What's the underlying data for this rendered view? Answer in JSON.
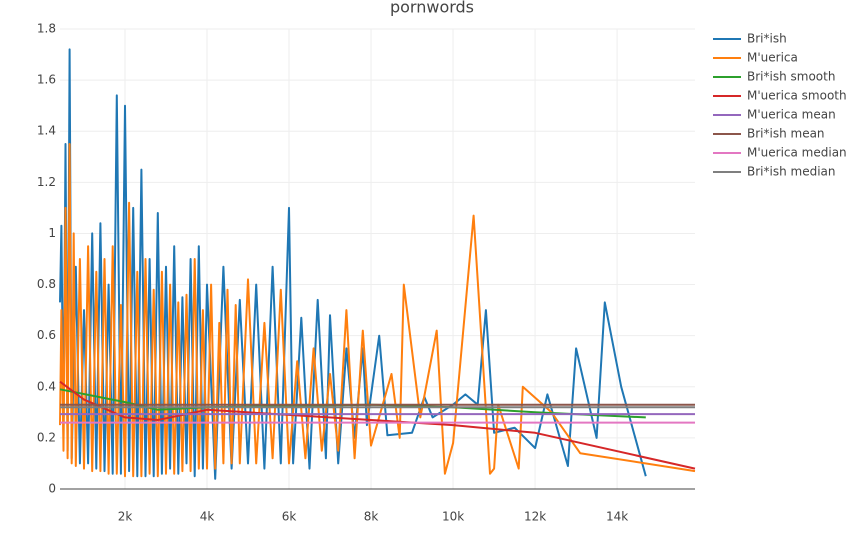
{
  "chart_data": {
    "type": "line",
    "title": "pornwords",
    "xlim": [
      415,
      15900
    ],
    "ylim": [
      0,
      1.8
    ],
    "xticks": [
      {
        "value": 2000,
        "label": "2k"
      },
      {
        "value": 4000,
        "label": "4k"
      },
      {
        "value": 6000,
        "label": "6k"
      },
      {
        "value": 8000,
        "label": "8k"
      },
      {
        "value": 10000,
        "label": "10k"
      },
      {
        "value": 12000,
        "label": "12k"
      },
      {
        "value": 14000,
        "label": "14k"
      }
    ],
    "yticks": [
      0,
      0.2,
      0.4,
      0.6,
      0.8,
      1,
      1.2,
      1.4,
      1.6,
      1.8
    ],
    "grid": true,
    "legend": "right",
    "series": [
      {
        "name": "Bri*ish",
        "color": "#1f77b4",
        "x": [
          415,
          450,
          500,
          550,
          600,
          650,
          700,
          800,
          900,
          1000,
          1100,
          1200,
          1300,
          1400,
          1500,
          1600,
          1700,
          1800,
          1900,
          2000,
          2100,
          2200,
          2300,
          2400,
          2500,
          2600,
          2700,
          2800,
          2900,
          3000,
          3100,
          3200,
          3300,
          3400,
          3500,
          3600,
          3700,
          3800,
          3900,
          4000,
          4200,
          4400,
          4600,
          4800,
          5000,
          5200,
          5400,
          5600,
          5800,
          6000,
          6100,
          6300,
          6500,
          6700,
          6900,
          7000,
          7200,
          7400,
          7600,
          7800,
          7900,
          8200,
          8400,
          9000,
          9300,
          9500,
          10000,
          10300,
          10600,
          10800,
          11000,
          11500,
          12000,
          12300,
          12800,
          13000,
          13500,
          13700,
          14100,
          14700
        ],
        "values": [
          0.73,
          1.03,
          0.2,
          1.35,
          0.15,
          1.72,
          0.12,
          0.87,
          0.1,
          0.7,
          0.1,
          1.0,
          0.08,
          1.04,
          0.07,
          0.8,
          0.06,
          1.54,
          0.06,
          1.5,
          0.07,
          1.1,
          0.05,
          1.25,
          0.05,
          0.9,
          0.05,
          1.08,
          0.06,
          0.87,
          0.08,
          0.95,
          0.06,
          0.75,
          0.1,
          0.9,
          0.05,
          0.95,
          0.08,
          0.8,
          0.04,
          0.87,
          0.08,
          0.74,
          0.1,
          0.8,
          0.08,
          0.87,
          0.1,
          1.1,
          0.1,
          0.67,
          0.08,
          0.74,
          0.12,
          0.68,
          0.1,
          0.55,
          0.2,
          0.55,
          0.25,
          0.6,
          0.21,
          0.22,
          0.36,
          0.28,
          0.33,
          0.37,
          0.33,
          0.7,
          0.22,
          0.24,
          0.16,
          0.37,
          0.09,
          0.55,
          0.2,
          0.73,
          0.4,
          0.05
        ]
      },
      {
        "name": "M'uerica",
        "color": "#ff7f0e",
        "x": [
          415,
          450,
          500,
          550,
          600,
          650,
          700,
          750,
          800,
          900,
          1000,
          1100,
          1200,
          1300,
          1400,
          1500,
          1600,
          1700,
          1800,
          1900,
          2000,
          2100,
          2200,
          2300,
          2400,
          2500,
          2600,
          2700,
          2800,
          2900,
          3000,
          3100,
          3200,
          3300,
          3400,
          3500,
          3600,
          3700,
          3800,
          3900,
          4000,
          4100,
          4200,
          4300,
          4400,
          4500,
          4600,
          4700,
          4800,
          5000,
          5200,
          5400,
          5600,
          5800,
          6000,
          6200,
          6400,
          6600,
          6800,
          7000,
          7200,
          7400,
          7600,
          7800,
          8000,
          8500,
          8700,
          8800,
          9200,
          9600,
          9800,
          10000,
          10500,
          10900,
          11000,
          11100,
          11600,
          11700,
          12400,
          13100,
          15900
        ],
        "values": [
          0.25,
          0.7,
          0.15,
          1.1,
          0.12,
          1.35,
          0.1,
          1.0,
          0.09,
          0.9,
          0.08,
          0.95,
          0.07,
          0.85,
          0.07,
          0.9,
          0.06,
          0.95,
          0.06,
          0.72,
          0.05,
          1.12,
          0.05,
          0.85,
          0.05,
          0.9,
          0.06,
          0.78,
          0.05,
          0.85,
          0.06,
          0.8,
          0.06,
          0.73,
          0.07,
          0.76,
          0.07,
          0.9,
          0.08,
          0.7,
          0.08,
          0.8,
          0.08,
          0.65,
          0.1,
          0.78,
          0.1,
          0.72,
          0.1,
          0.82,
          0.1,
          0.65,
          0.12,
          0.78,
          0.1,
          0.5,
          0.12,
          0.55,
          0.15,
          0.45,
          0.15,
          0.7,
          0.12,
          0.62,
          0.17,
          0.45,
          0.2,
          0.8,
          0.28,
          0.62,
          0.06,
          0.18,
          1.07,
          0.06,
          0.08,
          0.33,
          0.08,
          0.4,
          0.3,
          0.14,
          0.07
        ]
      },
      {
        "name": "Bri*ish smooth",
        "color": "#2ca02c",
        "x": [
          415,
          2000,
          2800,
          4000,
          8000,
          10000,
          12000,
          14700
        ],
        "values": [
          0.39,
          0.34,
          0.31,
          0.32,
          0.33,
          0.32,
          0.3,
          0.28
        ]
      },
      {
        "name": "M'uerica smooth",
        "color": "#d62728",
        "x": [
          415,
          1000,
          2000,
          2800,
          4000,
          6000,
          8000,
          10000,
          12000,
          15900
        ],
        "values": [
          0.42,
          0.35,
          0.28,
          0.27,
          0.31,
          0.29,
          0.27,
          0.25,
          0.22,
          0.08
        ]
      },
      {
        "name": "M'uerica mean",
        "color": "#9467bd",
        "x": [
          415,
          15900
        ],
        "values": [
          0.293,
          0.293
        ]
      },
      {
        "name": "Bri*ish mean",
        "color": "#8c564b",
        "x": [
          415,
          15900
        ],
        "values": [
          0.33,
          0.33
        ]
      },
      {
        "name": "M'uerica median",
        "color": "#e377c2",
        "x": [
          415,
          15900
        ],
        "values": [
          0.26,
          0.26
        ]
      },
      {
        "name": "Bri*ish median",
        "color": "#7f7f7f",
        "x": [
          415,
          15900
        ],
        "values": [
          0.32,
          0.32
        ]
      }
    ]
  }
}
